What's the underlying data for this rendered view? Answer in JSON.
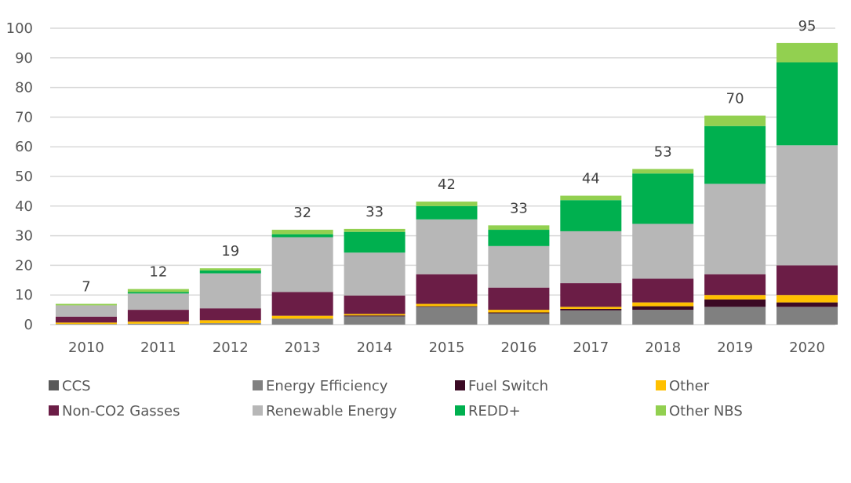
{
  "chart_data": {
    "type": "bar",
    "stacked": true,
    "title": "",
    "xlabel": "",
    "ylabel": "",
    "ylim": [
      0,
      100
    ],
    "yticks": [
      0,
      10,
      20,
      30,
      40,
      50,
      60,
      70,
      80,
      90,
      100
    ],
    "grid": true,
    "legend_position": "bottom",
    "categories": [
      "2010",
      "2011",
      "2012",
      "2013",
      "2014",
      "2015",
      "2016",
      "2017",
      "2018",
      "2019",
      "2020"
    ],
    "totals": [
      7,
      12,
      19,
      32,
      33,
      42,
      33,
      44,
      53,
      70,
      95
    ],
    "series": [
      {
        "name": "CCS",
        "color": "#595959",
        "values": [
          0,
          0,
          0,
          0,
          0,
          0,
          0,
          0,
          0,
          0,
          0
        ]
      },
      {
        "name": "Energy Efficiency",
        "color": "#808080",
        "values": [
          0.2,
          0.3,
          0.5,
          2,
          2.8,
          6,
          3.8,
          4.8,
          5,
          6,
          6
        ]
      },
      {
        "name": "Fuel Switch",
        "color": "#3b0a24",
        "values": [
          0,
          0,
          0,
          0,
          0.3,
          0.2,
          0.3,
          0.5,
          1.2,
          2.5,
          1.5
        ]
      },
      {
        "name": "Other",
        "color": "#ffc000",
        "values": [
          0.5,
          0.7,
          1,
          1,
          0.5,
          0.8,
          0.9,
          0.7,
          1.3,
          1.5,
          2.5
        ]
      },
      {
        "name": "Non-CO2 Gasses",
        "color": "#6b1d46",
        "values": [
          2,
          4,
          4,
          8,
          6.2,
          10,
          7.5,
          8,
          8,
          7,
          10
        ]
      },
      {
        "name": "Renewable Energy",
        "color": "#b7b7b7",
        "values": [
          3.8,
          5.5,
          11.8,
          18.5,
          14.5,
          18.5,
          14,
          17.5,
          18.5,
          30.5,
          40.5
        ]
      },
      {
        "name": "REDD+",
        "color": "#00b04f",
        "values": [
          0,
          0.5,
          1,
          1,
          7,
          4.5,
          5.5,
          10.5,
          17,
          19.5,
          28
        ]
      },
      {
        "name": "Other NBS",
        "color": "#92d050",
        "values": [
          0.5,
          1,
          0.7,
          1.5,
          1,
          1.5,
          1.5,
          1.5,
          1.5,
          3.5,
          6.5
        ]
      }
    ],
    "legend": [
      [
        "CCS",
        "Energy Efficiency",
        "Fuel Switch",
        "Other"
      ],
      [
        "Non-CO2 Gasses",
        "Renewable Energy",
        "REDD+",
        "Other NBS"
      ]
    ]
  }
}
